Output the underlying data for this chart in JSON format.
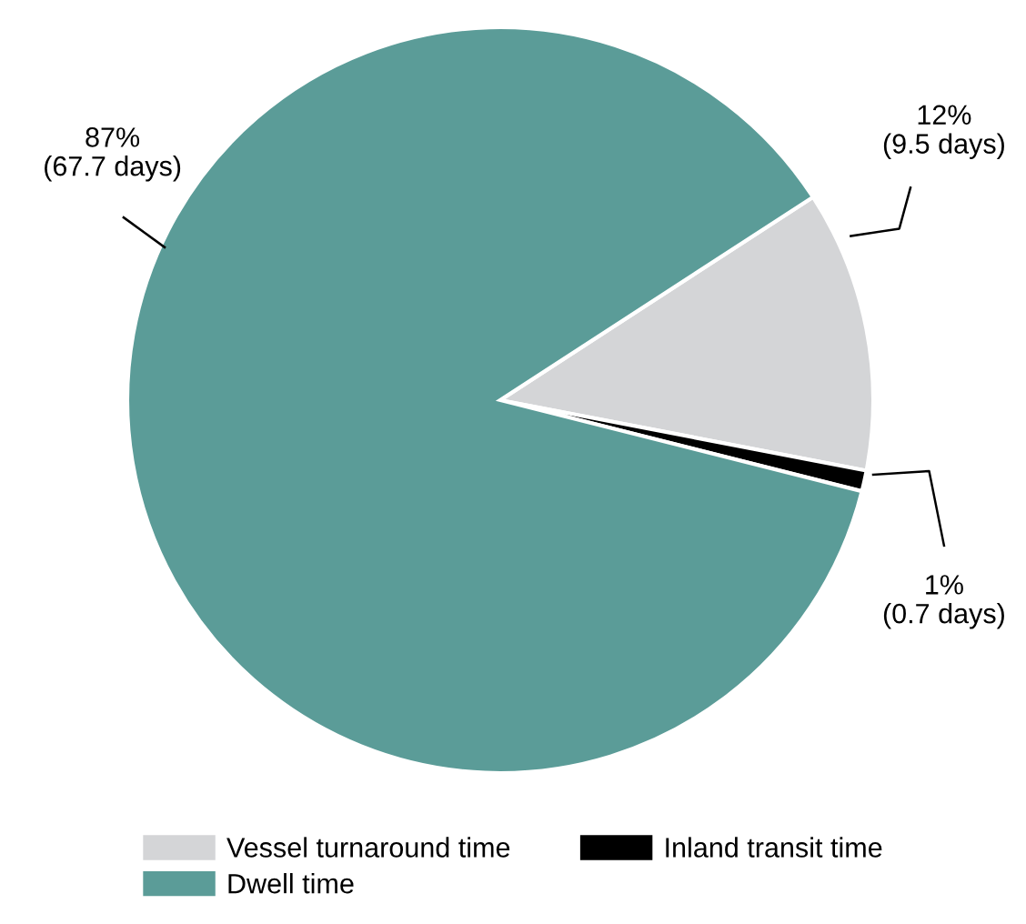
{
  "chart_data": {
    "type": "pie",
    "categories": [
      "Vessel turnaround time",
      "Inland transit time",
      "Dwell time"
    ],
    "values": [
      9.5,
      0.7,
      67.7
    ],
    "value_labels": [
      "12%\n(9.5 days)",
      "1%\n(0.7 days)",
      "87%\n(67.7 days)"
    ],
    "colors": [
      "#d4d5d7",
      "#000000",
      "#5b9c98"
    ],
    "legend": "bottom"
  }
}
